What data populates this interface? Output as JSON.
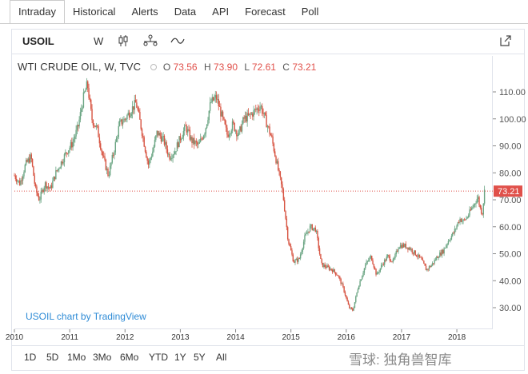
{
  "tabs": [
    {
      "label": "Intraday",
      "active": true
    },
    {
      "label": "Historical",
      "active": false
    },
    {
      "label": "Alerts",
      "active": false
    },
    {
      "label": "Data",
      "active": false
    },
    {
      "label": "API",
      "active": false
    },
    {
      "label": "Forecast",
      "active": false
    },
    {
      "label": "Poll",
      "active": false
    }
  ],
  "toolbar": {
    "symbol": "USOIL",
    "interval": "W",
    "icons": [
      "candlestick-icon",
      "compare-icon",
      "indicator-icon",
      "popout-icon"
    ]
  },
  "legend": {
    "title": "WTI CRUDE OIL, W, TVC",
    "open_label": "O",
    "open": "73.56",
    "high_label": "H",
    "high": "73.90",
    "low_label": "L",
    "low": "72.61",
    "close_label": "C",
    "close": "73.21"
  },
  "watermark": "USOIL chart by TradingView",
  "ranges": [
    "1D",
    "5D",
    "1Mo",
    "3Mo",
    "6Mo",
    "YTD",
    "1Y",
    "5Y",
    "All"
  ],
  "corner_watermark": "雪球: 独角兽智库",
  "colors": {
    "up": "#6ba583",
    "down": "#d75442",
    "price_line": "#e0504a",
    "link": "#2e8bd6"
  },
  "chart_data": {
    "type": "candlestick",
    "title": "WTI CRUDE OIL, W, TVC",
    "x_ticks": [
      "2010",
      "2011",
      "2012",
      "2013",
      "2014",
      "2015",
      "2016",
      "2017",
      "2018"
    ],
    "y_ticks": [
      "30.00",
      "40.00",
      "50.00",
      "60.00",
      "70.00",
      "80.00",
      "90.00",
      "100.00",
      "110.00"
    ],
    "ylim": [
      22,
      118
    ],
    "xlim": [
      2010.0,
      2018.65
    ],
    "last_price": 73.21,
    "last_price_label": "73.21",
    "price_path": [
      [
        2010.0,
        79
      ],
      [
        2010.1,
        76
      ],
      [
        2010.2,
        83
      ],
      [
        2010.3,
        86
      ],
      [
        2010.38,
        74
      ],
      [
        2010.45,
        70
      ],
      [
        2010.55,
        76
      ],
      [
        2010.65,
        74
      ],
      [
        2010.75,
        80
      ],
      [
        2010.85,
        84
      ],
      [
        2010.95,
        88
      ],
      [
        2011.05,
        91
      ],
      [
        2011.15,
        97
      ],
      [
        2011.25,
        108
      ],
      [
        2011.32,
        113
      ],
      [
        2011.4,
        100
      ],
      [
        2011.5,
        96
      ],
      [
        2011.6,
        86
      ],
      [
        2011.7,
        79
      ],
      [
        2011.8,
        88
      ],
      [
        2011.9,
        98
      ],
      [
        2012.0,
        100
      ],
      [
        2012.1,
        103
      ],
      [
        2012.2,
        106
      ],
      [
        2012.3,
        96
      ],
      [
        2012.42,
        83
      ],
      [
        2012.5,
        88
      ],
      [
        2012.58,
        95
      ],
      [
        2012.7,
        92
      ],
      [
        2012.8,
        86
      ],
      [
        2012.9,
        88
      ],
      [
        2013.0,
        93
      ],
      [
        2013.1,
        97
      ],
      [
        2013.2,
        92
      ],
      [
        2013.33,
        90
      ],
      [
        2013.45,
        96
      ],
      [
        2013.55,
        106
      ],
      [
        2013.65,
        108
      ],
      [
        2013.75,
        101
      ],
      [
        2013.85,
        94
      ],
      [
        2013.95,
        98
      ],
      [
        2014.05,
        94
      ],
      [
        2014.15,
        100
      ],
      [
        2014.25,
        101
      ],
      [
        2014.35,
        103
      ],
      [
        2014.45,
        105
      ],
      [
        2014.55,
        99
      ],
      [
        2014.65,
        93
      ],
      [
        2014.75,
        83
      ],
      [
        2014.85,
        73
      ],
      [
        2014.95,
        55
      ],
      [
        2015.05,
        47
      ],
      [
        2015.15,
        48
      ],
      [
        2015.25,
        56
      ],
      [
        2015.35,
        60
      ],
      [
        2015.45,
        59
      ],
      [
        2015.55,
        46
      ],
      [
        2015.65,
        45
      ],
      [
        2015.75,
        44
      ],
      [
        2015.85,
        42
      ],
      [
        2015.95,
        37
      ],
      [
        2016.05,
        30
      ],
      [
        2016.12,
        29
      ],
      [
        2016.22,
        38
      ],
      [
        2016.35,
        46
      ],
      [
        2016.45,
        49
      ],
      [
        2016.55,
        42
      ],
      [
        2016.65,
        46
      ],
      [
        2016.75,
        49
      ],
      [
        2016.85,
        47
      ],
      [
        2016.95,
        53
      ],
      [
        2017.05,
        53
      ],
      [
        2017.15,
        52
      ],
      [
        2017.25,
        50
      ],
      [
        2017.35,
        48
      ],
      [
        2017.45,
        44
      ],
      [
        2017.55,
        46
      ],
      [
        2017.65,
        49
      ],
      [
        2017.75,
        51
      ],
      [
        2017.85,
        55
      ],
      [
        2017.95,
        58
      ],
      [
        2018.05,
        63
      ],
      [
        2018.12,
        62
      ],
      [
        2018.2,
        64
      ],
      [
        2018.3,
        68
      ],
      [
        2018.38,
        71
      ],
      [
        2018.42,
        67
      ],
      [
        2018.46,
        65
      ],
      [
        2018.5,
        73.21
      ]
    ]
  }
}
